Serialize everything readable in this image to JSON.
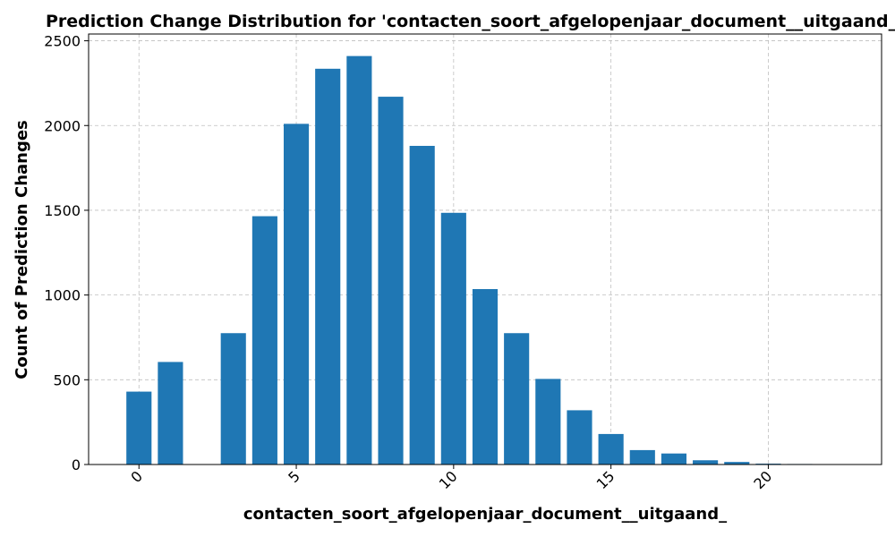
{
  "chart_data": {
    "type": "bar",
    "title": "Prediction Change Distribution for 'contacten_soort_afgelopenjaar_document__uitgaand_'",
    "xlabel": "contacten_soort_afgelopenjaar_document__uitgaand_",
    "ylabel": "Count of Prediction Changes",
    "x": [
      0,
      1,
      3,
      4,
      5,
      6,
      7,
      8,
      9,
      10,
      11,
      12,
      13,
      14,
      15,
      16,
      17,
      18,
      19,
      20,
      21,
      22
    ],
    "values": [
      430,
      605,
      775,
      1465,
      2010,
      2335,
      2410,
      2170,
      1880,
      1485,
      1035,
      775,
      505,
      320,
      180,
      85,
      65,
      25,
      15,
      5,
      3,
      2
    ],
    "xlim": [
      -1.6,
      23.6
    ],
    "ylim": [
      0,
      2540
    ],
    "xticks": [
      0,
      5,
      10,
      15,
      20
    ],
    "yticks": [
      0,
      500,
      1000,
      1500,
      2000,
      2500
    ],
    "bar_color": "#1f77b4",
    "grid": true
  }
}
